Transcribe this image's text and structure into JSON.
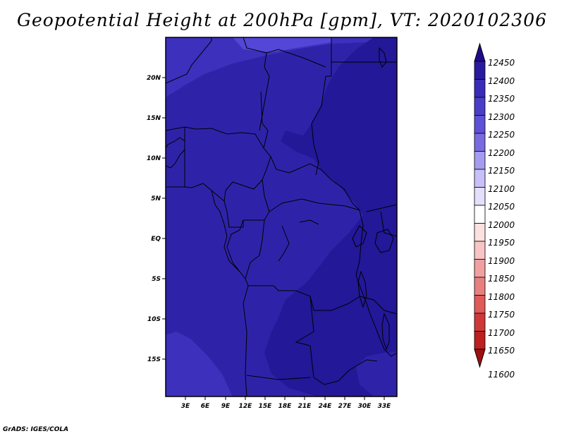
{
  "title": "Geopotential Height at 200hPa [gpm], VT: 2020102306",
  "footer": "GrADS: IGES/COLA",
  "map": {
    "lat_labels": [
      "20N",
      "15N",
      "10N",
      "5N",
      "EQ",
      "5S",
      "10S",
      "15S"
    ],
    "lon_labels": [
      "3E",
      "6E",
      "9E",
      "12E",
      "15E",
      "18E",
      "21E",
      "24E",
      "27E",
      "30E",
      "33E"
    ],
    "shading_levels_gpm": {
      "lowest_shown": 12350,
      "middle_shown": 12400,
      "highest_shown": 12450
    },
    "level_colors": {
      "12300": "#5446d6",
      "12350": "#3c30bd",
      "12400": "#2e23a8",
      "12450": "#221898"
    }
  },
  "colorbar": {
    "labels": [
      "12450",
      "12400",
      "12350",
      "12300",
      "12250",
      "12200",
      "12150",
      "12100",
      "12050",
      "12000",
      "11950",
      "11900",
      "11850",
      "11800",
      "11750",
      "11700",
      "11650",
      "11600"
    ],
    "colors": [
      "#200a8c",
      "#2a1aa0",
      "#3a2cb8",
      "#4a3ec8",
      "#6050d8",
      "#7a6ae0",
      "#a49cf0",
      "#c8c0f8",
      "#e4e0fc",
      "#ffffff",
      "#fde0e0",
      "#f8c4c4",
      "#f0a0a0",
      "#e88080",
      "#e05a5a",
      "#d03838",
      "#bc2020",
      "#a01010"
    ]
  }
}
